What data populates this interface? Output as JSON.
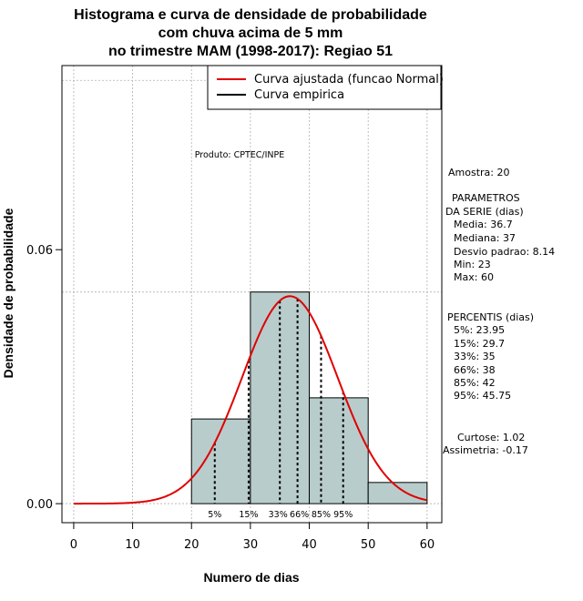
{
  "chart_data": {
    "type": "bar",
    "title_lines": [
      "Histograma e curva de densidade de probabilidade",
      "com chuva acima de 5 mm",
      "no trimestre MAM (1998-2017): Regiao 51"
    ],
    "xlabel": "Numero de dias",
    "ylabel": "Densidade de probabilidade",
    "xlim": [
      -2,
      62.5
    ],
    "ylim": [
      -0.0045,
      0.1035
    ],
    "x_ticks": [
      0,
      10,
      20,
      30,
      40,
      50,
      60
    ],
    "y_ticks": [
      {
        "value": 0.0,
        "label": "0.00"
      },
      {
        "value": 0.06,
        "label": "0.06"
      }
    ],
    "grid_x": [
      0,
      10,
      20,
      30,
      40,
      50,
      60
    ],
    "grid_y": [
      0.0,
      0.05,
      0.1
    ],
    "histogram": {
      "color": "#b8cccc",
      "bins": [
        {
          "start": 20,
          "end": 30,
          "density": 0.02
        },
        {
          "start": 30,
          "end": 40,
          "density": 0.05
        },
        {
          "start": 40,
          "end": 50,
          "density": 0.025
        },
        {
          "start": 50,
          "end": 60,
          "density": 0.005
        }
      ]
    },
    "normal_curve": {
      "mean": 36.7,
      "sd": 8.14,
      "x_range": [
        0,
        60
      ],
      "color": "#e00000"
    },
    "percentile_lines": [
      {
        "label": "5%",
        "value": 23.95
      },
      {
        "label": "15%",
        "value": 29.7
      },
      {
        "label": "33%",
        "value": 35
      },
      {
        "label": "66%",
        "value": 38
      },
      {
        "label": "85%",
        "value": 42
      },
      {
        "label": "95%",
        "value": 45.75
      }
    ],
    "legend": {
      "position": "top-right",
      "entries": [
        {
          "label": "Curva ajustada (funcao Normal)",
          "color": "#e00000"
        },
        {
          "label": "Curva empirica",
          "color": "#000000"
        }
      ]
    },
    "annotation": "Produto: CPTEC/INPE"
  },
  "stats_panel": {
    "sample": "Amostra: 20",
    "params_title_1": "PARAMETROS",
    "params_title_2": "DA SERIE (dias)",
    "params": [
      "Media: 36.7",
      "Mediana: 37",
      "Desvio padrao: 8.14",
      "Min: 23",
      "Max: 60"
    ],
    "percentis_title": "PERCENTIS (dias)",
    "percentis": [
      "5%: 23.95",
      "15%: 29.7",
      "33%: 35",
      "66%: 38",
      "85%: 42",
      "95%: 45.75"
    ],
    "kurtosis": "Curtose: 1.02",
    "skewness": "Assimetria: -0.17"
  }
}
